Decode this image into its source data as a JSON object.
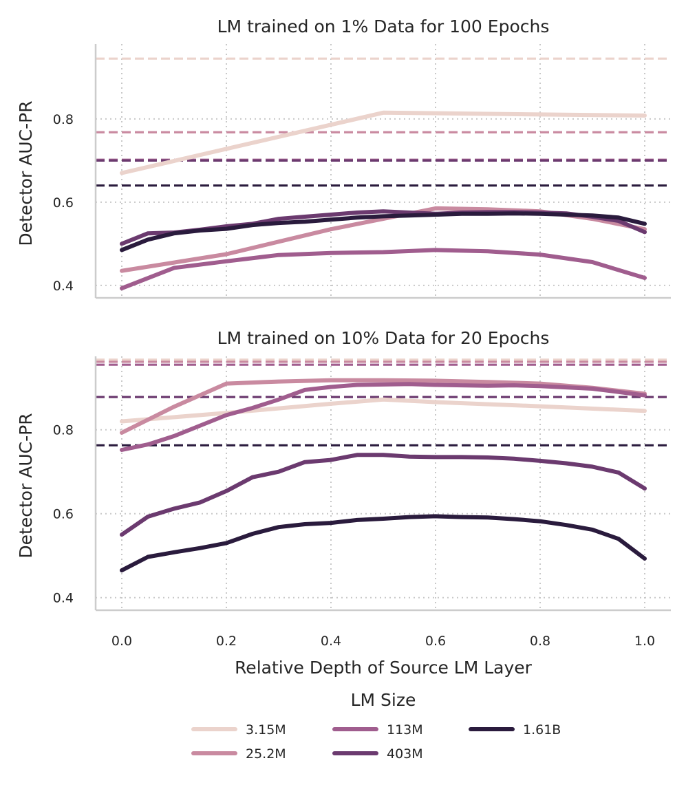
{
  "legend": {
    "title": "LM Size",
    "items": [
      {
        "name": "3.15M",
        "color": "#ebd3cc"
      },
      {
        "name": "25.2M",
        "color": "#c98aa0"
      },
      {
        "name": "113M",
        "color": "#a05d8e"
      },
      {
        "name": "403M",
        "color": "#6b3a6f"
      },
      {
        "name": "1.61B",
        "color": "#2a1b3d"
      }
    ]
  },
  "chart_data": [
    {
      "type": "line",
      "title": "LM trained on 1% Data for 100 Epochs",
      "xlabel": "",
      "ylabel": "Detector AUC-PR",
      "xlim": [
        -0.05,
        1.05
      ],
      "ylim": [
        0.37,
        0.98
      ],
      "xticks": [
        "0.0",
        "0.2",
        "0.4",
        "0.6",
        "0.8",
        "1.0"
      ],
      "yticks": [
        "0.4",
        "0.6",
        "0.8"
      ],
      "grid": true,
      "series": [
        {
          "name": "3.15M",
          "color": "#ebd3cc",
          "baseline": 0.945,
          "x": [
            0.0,
            0.5,
            1.0
          ],
          "y": [
            0.67,
            0.815,
            0.808
          ]
        },
        {
          "name": "25.2M",
          "color": "#c98aa0",
          "baseline": 0.768,
          "x": [
            0.0,
            0.2,
            0.3,
            0.4,
            0.5,
            0.6,
            0.7,
            0.8,
            0.9,
            1.0
          ],
          "y": [
            0.435,
            0.475,
            0.505,
            0.535,
            0.56,
            0.585,
            0.583,
            0.578,
            0.56,
            0.535
          ]
        },
        {
          "name": "113M",
          "color": "#a05d8e",
          "baseline": 0.702,
          "x": [
            0.0,
            0.1,
            0.2,
            0.3,
            0.4,
            0.5,
            0.6,
            0.7,
            0.8,
            0.9,
            1.0
          ],
          "y": [
            0.393,
            0.442,
            0.458,
            0.473,
            0.478,
            0.48,
            0.485,
            0.482,
            0.474,
            0.456,
            0.418
          ]
        },
        {
          "name": "403M",
          "color": "#6b3a6f",
          "baseline": 0.7,
          "x": [
            0.0,
            0.05,
            0.1,
            0.15,
            0.2,
            0.25,
            0.3,
            0.35,
            0.4,
            0.45,
            0.5,
            0.55,
            0.6,
            0.65,
            0.7,
            0.75,
            0.8,
            0.85,
            0.9,
            0.95,
            1.0
          ],
          "y": [
            0.5,
            0.525,
            0.527,
            0.534,
            0.542,
            0.548,
            0.56,
            0.565,
            0.57,
            0.575,
            0.578,
            0.575,
            0.572,
            0.575,
            0.576,
            0.576,
            0.575,
            0.573,
            0.565,
            0.555,
            0.528
          ]
        },
        {
          "name": "1.61B",
          "color": "#2a1b3d",
          "baseline": 0.64,
          "x": [
            0.0,
            0.05,
            0.1,
            0.15,
            0.2,
            0.25,
            0.3,
            0.35,
            0.4,
            0.45,
            0.5,
            0.55,
            0.6,
            0.65,
            0.7,
            0.75,
            0.8,
            0.85,
            0.9,
            0.95,
            1.0
          ],
          "y": [
            0.485,
            0.51,
            0.525,
            0.532,
            0.536,
            0.545,
            0.55,
            0.553,
            0.558,
            0.563,
            0.566,
            0.568,
            0.57,
            0.572,
            0.572,
            0.573,
            0.572,
            0.57,
            0.568,
            0.563,
            0.548
          ]
        }
      ]
    },
    {
      "type": "line",
      "title": "LM trained on 10% Data for 20 Epochs",
      "xlabel": "Relative Depth of Source LM Layer",
      "ylabel": "Detector AUC-PR",
      "xlim": [
        -0.05,
        1.05
      ],
      "ylim": [
        0.37,
        0.975
      ],
      "xticks": [
        "0.0",
        "0.2",
        "0.4",
        "0.6",
        "0.8",
        "1.0"
      ],
      "yticks": [
        "0.4",
        "0.6",
        "0.8"
      ],
      "grid": true,
      "series": [
        {
          "name": "3.15M",
          "color": "#ebd3cc",
          "baseline": 0.967,
          "x": [
            0.0,
            0.2,
            0.4,
            0.5,
            0.6,
            0.8,
            1.0
          ],
          "y": [
            0.82,
            0.84,
            0.862,
            0.872,
            0.866,
            0.856,
            0.845
          ]
        },
        {
          "name": "25.2M",
          "color": "#c98aa0",
          "baseline": 0.962,
          "x": [
            0.0,
            0.1,
            0.2,
            0.3,
            0.4,
            0.5,
            0.6,
            0.7,
            0.8,
            0.9,
            1.0
          ],
          "y": [
            0.793,
            0.855,
            0.91,
            0.915,
            0.918,
            0.918,
            0.917,
            0.914,
            0.91,
            0.9,
            0.886
          ]
        },
        {
          "name": "113M",
          "color": "#a05d8e",
          "baseline": 0.955,
          "x": [
            0.0,
            0.05,
            0.1,
            0.15,
            0.2,
            0.25,
            0.3,
            0.35,
            0.4,
            0.45,
            0.5,
            0.55,
            0.6,
            0.65,
            0.7,
            0.75,
            0.8,
            0.85,
            0.9,
            0.95,
            1.0
          ],
          "y": [
            0.752,
            0.765,
            0.785,
            0.81,
            0.835,
            0.852,
            0.872,
            0.895,
            0.902,
            0.907,
            0.908,
            0.909,
            0.907,
            0.906,
            0.905,
            0.906,
            0.904,
            0.901,
            0.898,
            0.89,
            0.882
          ]
        },
        {
          "name": "403M",
          "color": "#6b3a6f",
          "baseline": 0.878,
          "x": [
            0.0,
            0.05,
            0.1,
            0.15,
            0.2,
            0.25,
            0.3,
            0.35,
            0.4,
            0.45,
            0.5,
            0.55,
            0.6,
            0.65,
            0.7,
            0.75,
            0.8,
            0.85,
            0.9,
            0.95,
            1.0
          ],
          "y": [
            0.55,
            0.593,
            0.612,
            0.627,
            0.654,
            0.687,
            0.7,
            0.723,
            0.728,
            0.74,
            0.74,
            0.736,
            0.735,
            0.735,
            0.734,
            0.731,
            0.726,
            0.72,
            0.712,
            0.698,
            0.66
          ]
        },
        {
          "name": "1.61B",
          "color": "#2a1b3d",
          "baseline": 0.763,
          "x": [
            0.0,
            0.05,
            0.1,
            0.15,
            0.2,
            0.25,
            0.3,
            0.35,
            0.4,
            0.45,
            0.5,
            0.55,
            0.6,
            0.65,
            0.7,
            0.75,
            0.8,
            0.85,
            0.9,
            0.95,
            1.0
          ],
          "y": [
            0.465,
            0.497,
            0.508,
            0.518,
            0.53,
            0.552,
            0.568,
            0.575,
            0.578,
            0.585,
            0.588,
            0.592,
            0.594,
            0.592,
            0.591,
            0.587,
            0.582,
            0.573,
            0.562,
            0.54,
            0.493
          ]
        }
      ]
    }
  ]
}
